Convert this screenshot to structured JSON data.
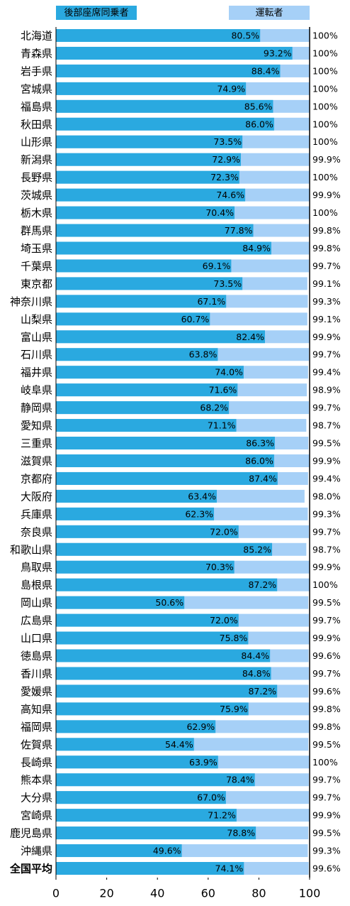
{
  "chart_data": {
    "type": "overlap-barh",
    "categories": [
      "北海道",
      "青森県",
      "岩手県",
      "宮城県",
      "福島県",
      "秋田県",
      "山形県",
      "新潟県",
      "長野県",
      "茨城県",
      "栃木県",
      "群馬県",
      "埼玉県",
      "千葉県",
      "東京都",
      "神奈川県",
      "山梨県",
      "富山県",
      "石川県",
      "福井県",
      "岐阜県",
      "静岡県",
      "愛知県",
      "三重県",
      "滋賀県",
      "京都府",
      "大阪府",
      "兵庫県",
      "奈良県",
      "和歌山県",
      "鳥取県",
      "島根県",
      "岡山県",
      "広島県",
      "山口県",
      "徳島県",
      "香川県",
      "愛媛県",
      "高知県",
      "福岡県",
      "佐賀県",
      "長崎県",
      "熊本県",
      "大分県",
      "宮崎県",
      "鹿児島県",
      "沖縄県",
      "全国平均"
    ],
    "series": [
      {
        "name": "運転者",
        "color": "#a6d0f7",
        "values": [
          100,
          100,
          100,
          100,
          100,
          100,
          100,
          99.9,
          100,
          99.9,
          100,
          99.8,
          99.8,
          99.7,
          99.1,
          99.3,
          99.1,
          99.9,
          99.7,
          99.4,
          98.9,
          99.7,
          98.7,
          99.5,
          99.9,
          99.4,
          98.0,
          99.3,
          99.7,
          98.7,
          99.9,
          100,
          99.5,
          99.7,
          99.9,
          99.6,
          99.7,
          99.6,
          99.8,
          99.8,
          99.5,
          100,
          99.7,
          99.7,
          99.9,
          99.5,
          99.3,
          99.6
        ],
        "value_labels": [
          "100%",
          "100%",
          "100%",
          "100%",
          "100%",
          "100%",
          "100%",
          "99.9%",
          "100%",
          "99.9%",
          "100%",
          "99.8%",
          "99.8%",
          "99.7%",
          "99.1%",
          "99.3%",
          "99.1%",
          "99.9%",
          "99.7%",
          "99.4%",
          "98.9%",
          "99.7%",
          "98.7%",
          "99.5%",
          "99.9%",
          "99.4%",
          "98.0%",
          "99.3%",
          "99.7%",
          "98.7%",
          "99.9%",
          "100%",
          "99.5%",
          "99.7%",
          "99.9%",
          "99.6%",
          "99.7%",
          "99.6%",
          "99.8%",
          "99.8%",
          "99.5%",
          "100%",
          "99.7%",
          "99.7%",
          "99.9%",
          "99.5%",
          "99.3%",
          "99.6%"
        ]
      },
      {
        "name": "後部座席同乗者",
        "color": "#2aa9e0",
        "values": [
          80.5,
          93.2,
          88.4,
          74.9,
          85.6,
          86.0,
          73.5,
          72.9,
          72.3,
          74.6,
          70.4,
          77.8,
          84.9,
          69.1,
          73.5,
          67.1,
          60.7,
          82.4,
          63.8,
          74.0,
          71.6,
          68.2,
          71.1,
          86.3,
          86.0,
          87.4,
          63.4,
          62.3,
          72.0,
          85.2,
          70.3,
          87.2,
          50.6,
          72.0,
          75.8,
          84.4,
          84.8,
          87.2,
          75.9,
          62.9,
          54.4,
          63.9,
          78.4,
          67.0,
          71.2,
          78.8,
          49.6,
          74.1
        ],
        "value_labels": [
          "80.5%",
          "93.2%",
          "88.4%",
          "74.9%",
          "85.6%",
          "86.0%",
          "73.5%",
          "72.9%",
          "72.3%",
          "74.6%",
          "70.4%",
          "77.8%",
          "84.9%",
          "69.1%",
          "73.5%",
          "67.1%",
          "60.7%",
          "82.4%",
          "63.8%",
          "74.0%",
          "71.6%",
          "68.2%",
          "71.1%",
          "86.3%",
          "86.0%",
          "87.4%",
          "63.4%",
          "62.3%",
          "72.0%",
          "85.2%",
          "70.3%",
          "87.2%",
          "50.6%",
          "72.0%",
          "75.8%",
          "84.4%",
          "84.8%",
          "87.2%",
          "75.9%",
          "62.9%",
          "54.4%",
          "63.9%",
          "78.4%",
          "67.0%",
          "71.2%",
          "78.8%",
          "49.6%",
          "74.1%"
        ]
      }
    ],
    "xlim": [
      0,
      100
    ],
    "xticks": [
      0,
      20,
      40,
      60,
      80,
      100
    ]
  }
}
